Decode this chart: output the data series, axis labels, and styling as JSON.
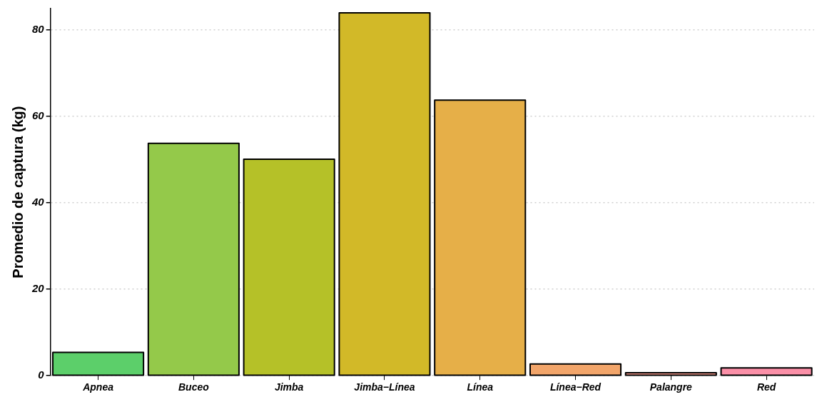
{
  "chart_data": {
    "type": "bar",
    "ylabel": "Promedio de captura (kg)",
    "categories": [
      "Apnea",
      "Buceo",
      "Jimba",
      "Jimba−Línea",
      "Línea",
      "Línea−Red",
      "Palangre",
      "Red"
    ],
    "values": [
      5.4,
      53.8,
      50.1,
      84,
      63.8,
      2.7,
      0.7,
      1.8
    ],
    "colors": [
      "#5ccf6a",
      "#94c94a",
      "#b5c128",
      "#d2b928",
      "#e6af48",
      "#f2a56a",
      "#f59a8c",
      "#fb90a8"
    ],
    "ylim": [
      0,
      85
    ],
    "yticks": [
      0,
      20,
      40,
      60,
      80
    ],
    "grid": "y"
  }
}
